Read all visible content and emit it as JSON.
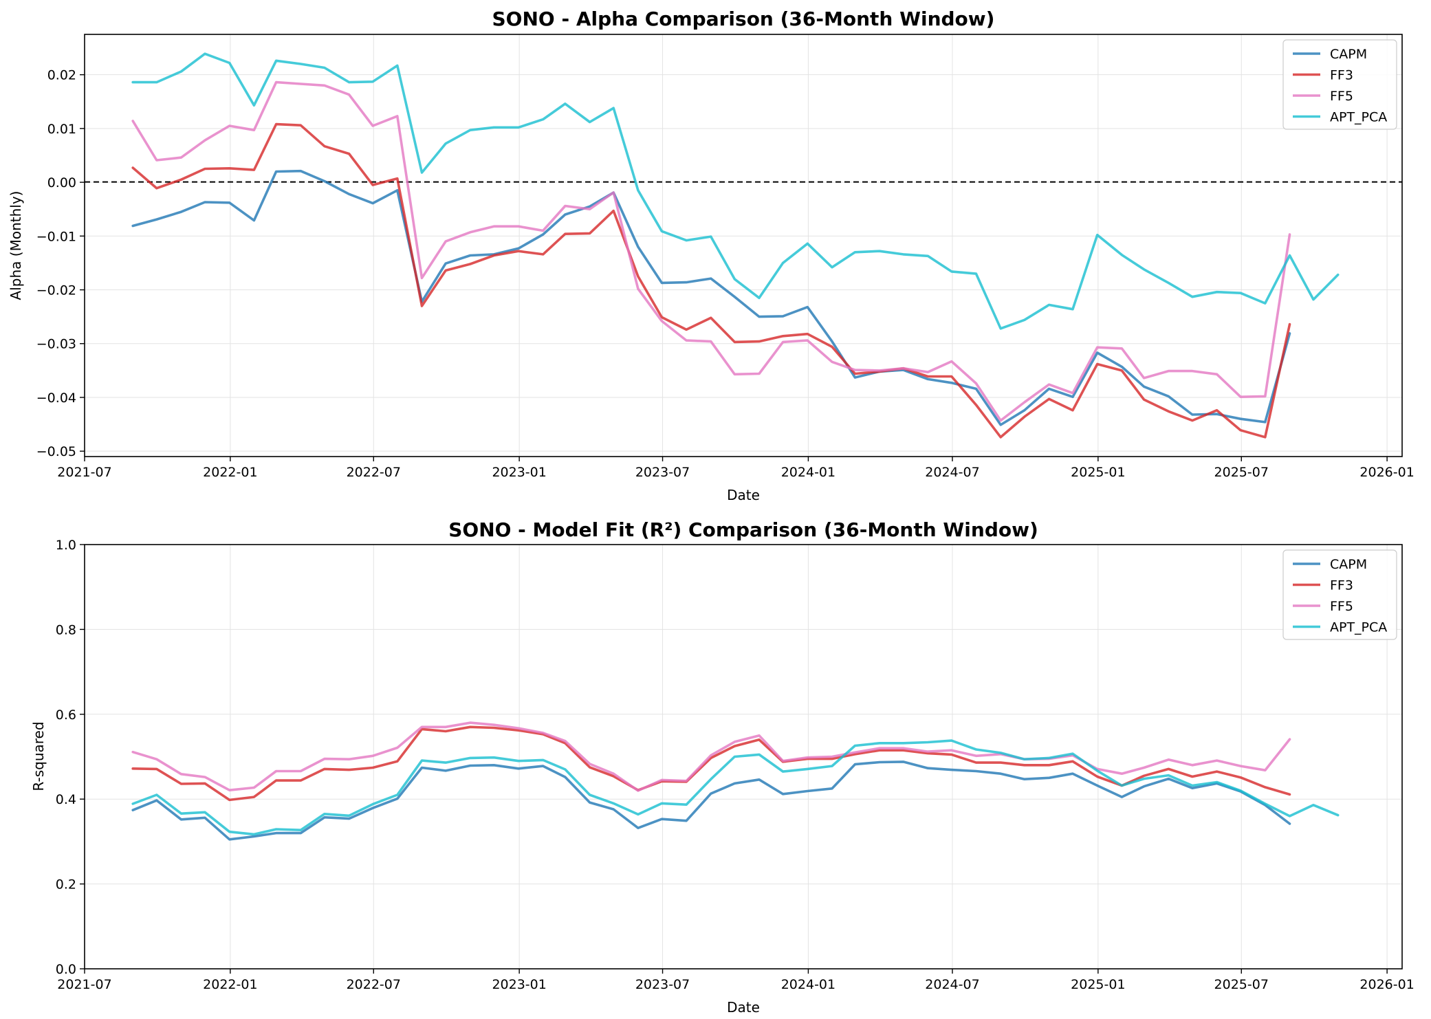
{
  "chart_data": [
    {
      "type": "line",
      "title": "SONO - Alpha Comparison (36-Month Window)",
      "xlabel": "Date",
      "ylabel": "Alpha (Monthly)",
      "ylim": [
        -0.051,
        0.0275
      ],
      "xlim": [
        "2021-07-01",
        "2026-01-20"
      ],
      "x_ticks": [
        "2021-07",
        "2022-01",
        "2022-07",
        "2023-01",
        "2023-07",
        "2024-01",
        "2024-07",
        "2025-01",
        "2025-07",
        "2026-01"
      ],
      "y_ticks": [
        "0.02",
        "0.01",
        "0.00",
        "−0.01",
        "−0.02",
        "−0.03",
        "−0.04",
        "−0.05"
      ],
      "y_tick_values": [
        0.02,
        0.01,
        0.0,
        -0.01,
        -0.02,
        -0.03,
        -0.04,
        -0.05
      ],
      "reference_line": 0,
      "grid": true,
      "legend_position": "top-right",
      "x": [
        "2021-08-31",
        "2021-09-30",
        "2021-10-31",
        "2021-11-30",
        "2021-12-31",
        "2022-01-31",
        "2022-02-28",
        "2022-03-31",
        "2022-04-30",
        "2022-05-31",
        "2022-06-30",
        "2022-07-31",
        "2022-08-31",
        "2022-09-30",
        "2022-10-31",
        "2022-11-30",
        "2022-12-31",
        "2023-01-31",
        "2023-02-28",
        "2023-03-31",
        "2023-04-30",
        "2023-05-31",
        "2023-06-30",
        "2023-07-31",
        "2023-08-31",
        "2023-09-30",
        "2023-10-31",
        "2023-11-30",
        "2023-12-31",
        "2024-01-31",
        "2024-02-29",
        "2024-03-31",
        "2024-04-30",
        "2024-05-31",
        "2024-06-30",
        "2024-07-31",
        "2024-08-31",
        "2024-09-30",
        "2024-10-31",
        "2024-11-30",
        "2024-12-31",
        "2025-01-31",
        "2025-02-28",
        "2025-03-31",
        "2025-04-30",
        "2025-05-31",
        "2025-06-30",
        "2025-07-31",
        "2025-08-31",
        "2025-09-30",
        "2025-10-31"
      ],
      "series": [
        {
          "name": "CAPM",
          "color": "#1f77b4",
          "values": [
            -0.0081,
            -0.0069,
            -0.0055,
            -0.0037,
            -0.0038,
            -0.0071,
            0.002,
            0.0021,
            0.0002,
            -0.0022,
            -0.0039,
            -0.0015,
            -0.0222,
            -0.0151,
            -0.0136,
            -0.0134,
            -0.0123,
            -0.0097,
            -0.006,
            -0.0045,
            -0.0019,
            -0.012,
            -0.0187,
            -0.0186,
            -0.0179,
            -0.0213,
            -0.025,
            -0.0249,
            -0.0232,
            -0.0296,
            -0.0363,
            -0.0352,
            -0.0349,
            -0.0366,
            -0.0373,
            -0.0384,
            -0.0451,
            -0.0424,
            -0.0384,
            -0.0399,
            -0.0317,
            -0.0343,
            -0.038,
            -0.0398,
            -0.0432,
            -0.0431,
            -0.044,
            -0.0446,
            -0.0281,
            null,
            null
          ]
        },
        {
          "name": "FF3",
          "color": "#d62728",
          "values": [
            0.0027,
            -0.0011,
            0.0005,
            0.0025,
            0.0026,
            0.0023,
            0.0108,
            0.0106,
            0.0067,
            0.0053,
            -0.0005,
            0.0007,
            -0.023,
            -0.0164,
            -0.0152,
            -0.0136,
            -0.0128,
            -0.0134,
            -0.0096,
            -0.0095,
            -0.0053,
            -0.0175,
            -0.0251,
            -0.0274,
            -0.0252,
            -0.0297,
            -0.0296,
            -0.0286,
            -0.0282,
            -0.0306,
            -0.0356,
            -0.0352,
            -0.0346,
            -0.0361,
            -0.0361,
            -0.0414,
            -0.0474,
            -0.0436,
            -0.0403,
            -0.0424,
            -0.0338,
            -0.035,
            -0.0404,
            -0.0426,
            -0.0443,
            -0.0424,
            -0.0461,
            -0.0474,
            -0.0264,
            null,
            null
          ]
        },
        {
          "name": "FF5",
          "color": "#e377c2",
          "values": [
            0.0114,
            0.0041,
            0.0046,
            0.0078,
            0.0105,
            0.0097,
            0.0186,
            0.0183,
            0.018,
            0.0163,
            0.0105,
            0.0123,
            -0.0178,
            -0.011,
            -0.0093,
            -0.0082,
            -0.0082,
            -0.009,
            -0.0044,
            -0.005,
            -0.0019,
            -0.0198,
            -0.0258,
            -0.0294,
            -0.0296,
            -0.0357,
            -0.0356,
            -0.0297,
            -0.0294,
            -0.0334,
            -0.0349,
            -0.035,
            -0.0346,
            -0.0353,
            -0.0333,
            -0.0374,
            -0.0443,
            -0.0409,
            -0.0376,
            -0.0392,
            -0.0307,
            -0.0309,
            -0.0364,
            -0.0351,
            -0.0351,
            -0.0357,
            -0.0399,
            -0.0398,
            -0.0097,
            null,
            null
          ]
        },
        {
          "name": "APT_PCA",
          "color": "#17becf",
          "values": [
            0.0186,
            0.0186,
            0.0206,
            0.0239,
            0.0222,
            0.0143,
            0.0226,
            0.022,
            0.0213,
            0.0186,
            0.0187,
            0.0217,
            0.0018,
            0.0072,
            0.0097,
            0.0102,
            0.0102,
            0.0117,
            0.0146,
            0.0112,
            0.0138,
            -0.0015,
            -0.0091,
            -0.0108,
            -0.0101,
            -0.018,
            -0.0215,
            -0.015,
            -0.0114,
            -0.0158,
            -0.013,
            -0.0128,
            -0.0134,
            -0.0137,
            -0.0166,
            -0.017,
            -0.0272,
            -0.0256,
            -0.0228,
            -0.0236,
            -0.0098,
            -0.0135,
            -0.0162,
            -0.0187,
            -0.0213,
            -0.0204,
            -0.0206,
            -0.0225,
            -0.0136,
            -0.0218,
            -0.0172
          ]
        }
      ]
    },
    {
      "type": "line",
      "title": "SONO - Model Fit (R²) Comparison (36-Month Window)",
      "xlabel": "Date",
      "ylabel": "R-squared",
      "ylim": [
        0.0,
        1.0
      ],
      "xlim": [
        "2021-07-01",
        "2026-01-20"
      ],
      "x_ticks": [
        "2021-07",
        "2022-01",
        "2022-07",
        "2023-01",
        "2023-07",
        "2024-01",
        "2024-07",
        "2025-01",
        "2025-07",
        "2026-01"
      ],
      "y_ticks": [
        "1.0",
        "0.8",
        "0.6",
        "0.4",
        "0.2",
        "0.0"
      ],
      "y_tick_values": [
        1.0,
        0.8,
        0.6,
        0.4,
        0.2,
        0.0
      ],
      "grid": true,
      "legend_position": "top-right",
      "x": [
        "2021-08-31",
        "2021-09-30",
        "2021-10-31",
        "2021-11-30",
        "2021-12-31",
        "2022-01-31",
        "2022-02-28",
        "2022-03-31",
        "2022-04-30",
        "2022-05-31",
        "2022-06-30",
        "2022-07-31",
        "2022-08-31",
        "2022-09-30",
        "2022-10-31",
        "2022-11-30",
        "2022-12-31",
        "2023-01-31",
        "2023-02-28",
        "2023-03-31",
        "2023-04-30",
        "2023-05-31",
        "2023-06-30",
        "2023-07-31",
        "2023-08-31",
        "2023-09-30",
        "2023-10-31",
        "2023-11-30",
        "2023-12-31",
        "2024-01-31",
        "2024-02-29",
        "2024-03-31",
        "2024-04-30",
        "2024-05-31",
        "2024-06-30",
        "2024-07-31",
        "2024-08-31",
        "2024-09-30",
        "2024-10-31",
        "2024-11-30",
        "2024-12-31",
        "2025-01-31",
        "2025-02-28",
        "2025-03-31",
        "2025-04-30",
        "2025-05-31",
        "2025-06-30",
        "2025-07-31",
        "2025-08-31",
        "2025-09-30",
        "2025-10-31"
      ],
      "series": [
        {
          "name": "CAPM",
          "color": "#1f77b4",
          "values": [
            0.374,
            0.397,
            0.352,
            0.356,
            0.305,
            0.312,
            0.32,
            0.32,
            0.357,
            0.354,
            0.379,
            0.401,
            0.474,
            0.467,
            0.479,
            0.48,
            0.472,
            0.478,
            0.452,
            0.392,
            0.376,
            0.332,
            0.353,
            0.349,
            0.413,
            0.437,
            0.446,
            0.412,
            0.419,
            0.425,
            0.482,
            0.487,
            0.488,
            0.473,
            0.469,
            0.466,
            0.46,
            0.447,
            0.45,
            0.46,
            0.432,
            0.405,
            0.43,
            0.448,
            0.426,
            0.437,
            0.418,
            0.386,
            0.342,
            null,
            null
          ]
        },
        {
          "name": "FF3",
          "color": "#d62728",
          "values": [
            0.472,
            0.471,
            0.436,
            0.437,
            0.398,
            0.405,
            0.444,
            0.444,
            0.471,
            0.469,
            0.474,
            0.489,
            0.565,
            0.56,
            0.57,
            0.568,
            0.562,
            0.553,
            0.532,
            0.475,
            0.454,
            0.421,
            0.442,
            0.441,
            0.497,
            0.525,
            0.54,
            0.488,
            0.495,
            0.495,
            0.506,
            0.515,
            0.515,
            0.508,
            0.505,
            0.486,
            0.486,
            0.48,
            0.48,
            0.489,
            0.453,
            0.432,
            0.455,
            0.471,
            0.453,
            0.465,
            0.451,
            0.428,
            0.411,
            null,
            null
          ]
        },
        {
          "name": "FF5",
          "color": "#e377c2",
          "values": [
            0.511,
            0.494,
            0.459,
            0.452,
            0.421,
            0.427,
            0.466,
            0.466,
            0.495,
            0.494,
            0.502,
            0.521,
            0.57,
            0.57,
            0.58,
            0.575,
            0.567,
            0.556,
            0.537,
            0.483,
            0.46,
            0.42,
            0.445,
            0.443,
            0.503,
            0.535,
            0.55,
            0.49,
            0.498,
            0.5,
            0.51,
            0.52,
            0.52,
            0.512,
            0.515,
            0.502,
            0.506,
            0.494,
            0.495,
            0.503,
            0.471,
            0.46,
            0.474,
            0.493,
            0.48,
            0.491,
            0.478,
            0.468,
            0.541,
            null,
            null
          ]
        },
        {
          "name": "APT_PCA",
          "color": "#17becf",
          "values": [
            0.389,
            0.41,
            0.366,
            0.369,
            0.323,
            0.317,
            0.329,
            0.327,
            0.365,
            0.361,
            0.388,
            0.41,
            0.491,
            0.486,
            0.497,
            0.498,
            0.49,
            0.492,
            0.47,
            0.41,
            0.39,
            0.364,
            0.39,
            0.387,
            0.447,
            0.5,
            0.505,
            0.465,
            0.471,
            0.478,
            0.526,
            0.532,
            0.532,
            0.534,
            0.538,
            0.517,
            0.509,
            0.494,
            0.497,
            0.507,
            0.467,
            0.432,
            0.448,
            0.456,
            0.432,
            0.44,
            0.42,
            0.389,
            0.36,
            0.386,
            0.362
          ]
        }
      ]
    }
  ]
}
